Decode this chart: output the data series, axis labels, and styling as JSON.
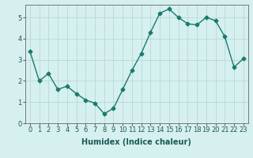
{
  "x": [
    0,
    1,
    2,
    3,
    4,
    5,
    6,
    7,
    8,
    9,
    10,
    11,
    12,
    13,
    14,
    15,
    16,
    17,
    18,
    19,
    20,
    21,
    22,
    23
  ],
  "y": [
    3.4,
    2.0,
    2.35,
    1.6,
    1.75,
    1.4,
    1.1,
    0.95,
    0.45,
    0.7,
    1.6,
    2.5,
    3.3,
    4.3,
    5.2,
    5.4,
    5.0,
    4.7,
    4.65,
    5.0,
    4.85,
    4.1,
    2.65,
    3.05
  ],
  "line_color": "#1a7a6e",
  "marker": "D",
  "markersize": 2.5,
  "linewidth": 1.0,
  "xlabel": "Humidex (Indice chaleur)",
  "xlim": [
    -0.5,
    23.5
  ],
  "ylim": [
    0,
    5.6
  ],
  "xticks": [
    0,
    1,
    2,
    3,
    4,
    5,
    6,
    7,
    8,
    9,
    10,
    11,
    12,
    13,
    14,
    15,
    16,
    17,
    18,
    19,
    20,
    21,
    22,
    23
  ],
  "yticks": [
    0,
    1,
    2,
    3,
    4,
    5
  ],
  "bg_color": "#d6f0ef",
  "grid_color": "#b8d8d5",
  "label_fontsize": 7,
  "tick_fontsize": 6
}
